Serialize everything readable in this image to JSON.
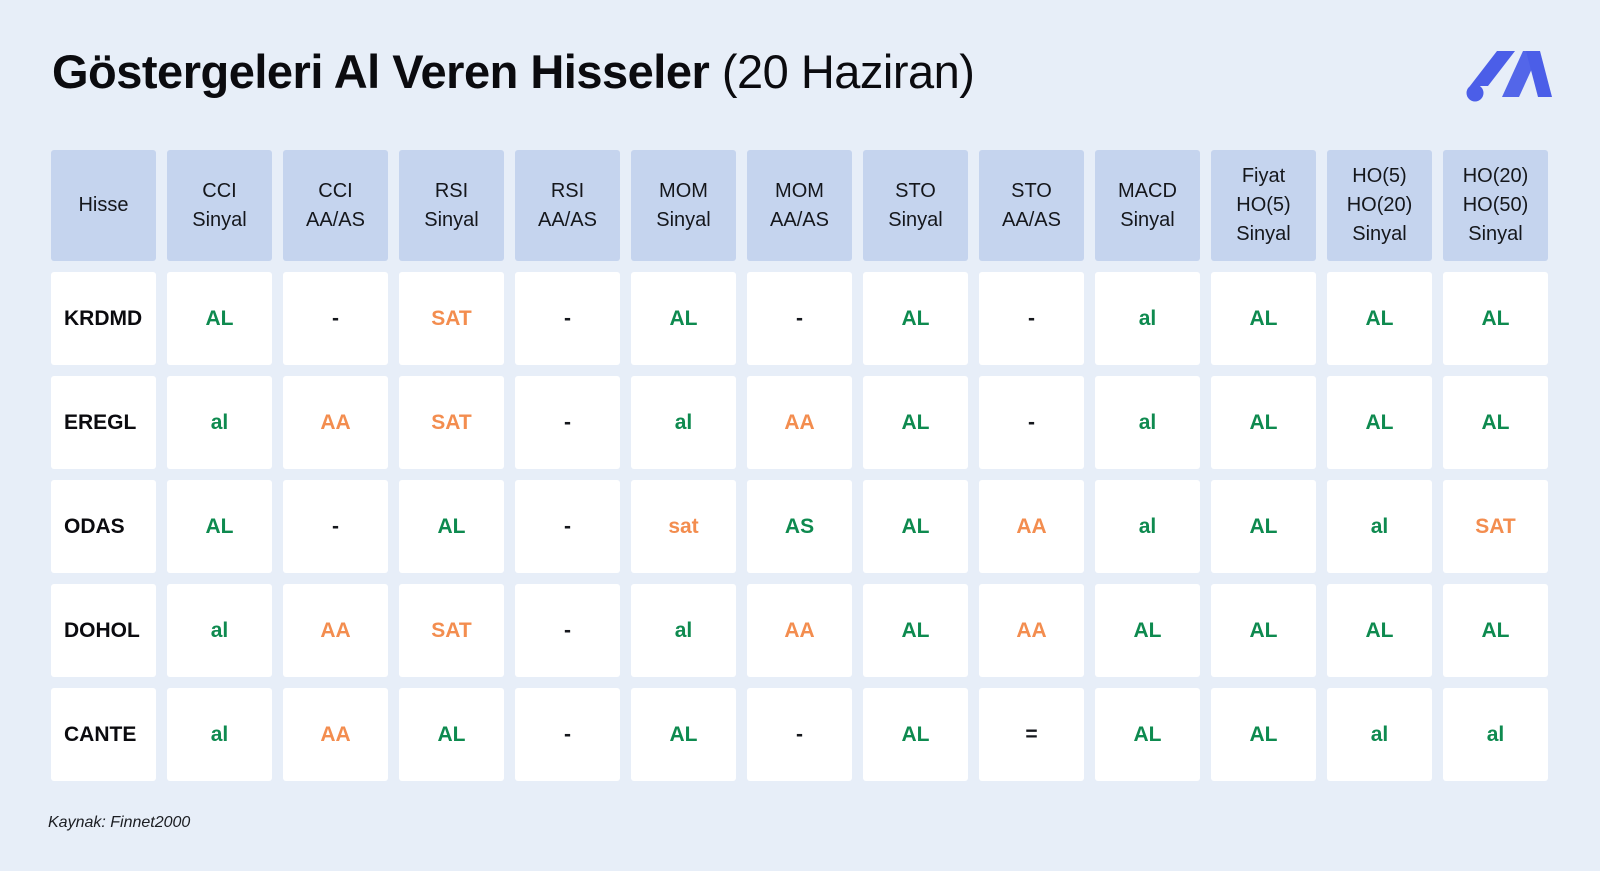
{
  "title": {
    "bold": "Göstergeleri Al Veren Hisseler",
    "light": "(20 Haziran)"
  },
  "logo_icon": "brand-logo-icon",
  "colors": {
    "background": "#e7eef8",
    "header": "#c5d4ee",
    "buy": "#0e8a4f",
    "sell": "#f38d4f",
    "logo": "#4b5ee8"
  },
  "table": {
    "headers": [
      "Hisse",
      "CCI\nSinyal",
      "CCI\nAA/AS",
      "RSI\nSinyal",
      "RSI\nAA/AS",
      "MOM\nSinyal",
      "MOM\nAA/AS",
      "STO\nSinyal",
      "STO\nAA/AS",
      "MACD\nSinyal",
      "Fiyat\nHO(5)\nSinyal",
      "HO(5)\nHO(20)\nSinyal",
      "HO(20)\nHO(50)\nSinyal"
    ],
    "rows": [
      {
        "name": "KRDMD",
        "values": [
          "AL",
          "-",
          "SAT",
          "-",
          "AL",
          "-",
          "AL",
          "-",
          "al",
          "AL",
          "AL",
          "AL"
        ]
      },
      {
        "name": "EREGL",
        "values": [
          "al",
          "AA",
          "SAT",
          "-",
          "al",
          "AA",
          "AL",
          "-",
          "al",
          "AL",
          "AL",
          "AL"
        ]
      },
      {
        "name": "ODAS",
        "values": [
          "AL",
          "-",
          "AL",
          "-",
          "sat",
          "AS",
          "AL",
          "AA",
          "al",
          "AL",
          "al",
          "SAT"
        ]
      },
      {
        "name": "DOHOL",
        "values": [
          "al",
          "AA",
          "SAT",
          "-",
          "al",
          "AA",
          "AL",
          "AA",
          "AL",
          "AL",
          "AL",
          "AL"
        ]
      },
      {
        "name": "CANTE",
        "values": [
          "al",
          "AA",
          "AL",
          "-",
          "AL",
          "-",
          "AL",
          "=",
          "AL",
          "AL",
          "al",
          "al"
        ]
      }
    ]
  },
  "source": "Kaynak: Finnet2000"
}
